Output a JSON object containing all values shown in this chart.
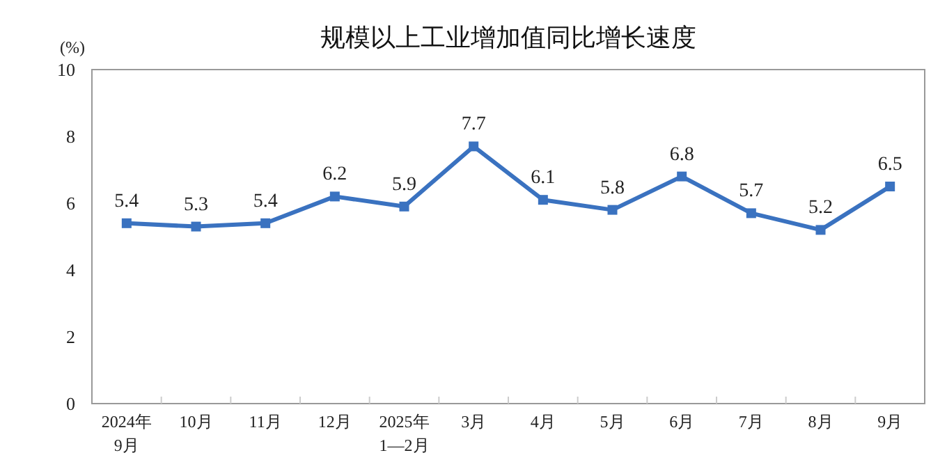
{
  "chart_data": {
    "type": "line",
    "title": "规模以上工业增加值同比增长速度",
    "ylabel": "(%)",
    "categories": [
      "2024年\n9月",
      "10月",
      "11月",
      "12月",
      "2025年\n1—2月",
      "3月",
      "4月",
      "5月",
      "6月",
      "7月",
      "8月",
      "9月"
    ],
    "series": [
      {
        "color": "#3a72c0",
        "values": [
          5.4,
          5.3,
          5.4,
          6.2,
          5.9,
          7.7,
          6.1,
          5.8,
          6.8,
          5.7,
          5.2,
          6.5
        ]
      }
    ],
    "ylim": [
      0,
      10
    ],
    "yticks": [
      0,
      2,
      4,
      6,
      8,
      10
    ],
    "grid": false,
    "marker": "square",
    "line_style": "solid",
    "data_labels": true
  }
}
